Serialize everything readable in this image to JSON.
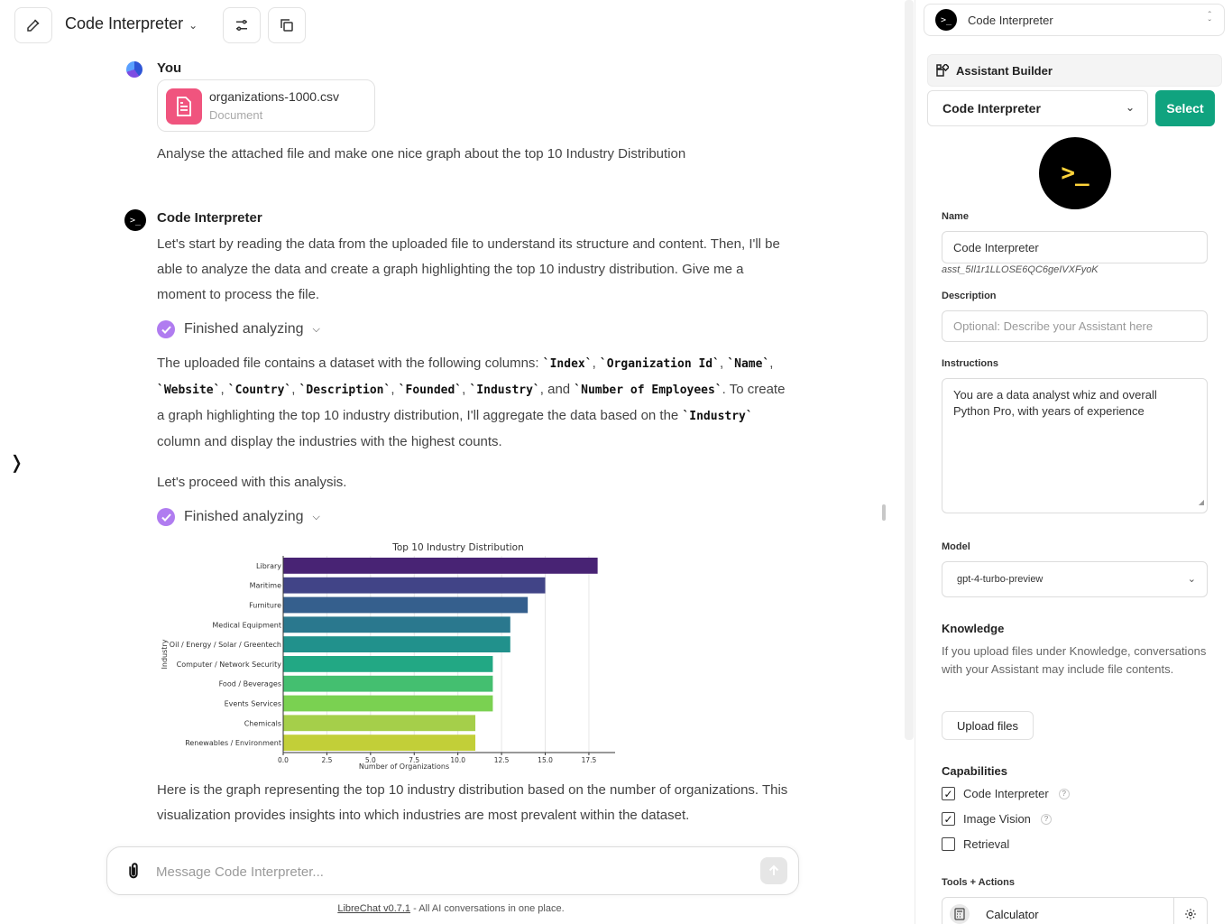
{
  "header": {
    "title": "Code Interpreter"
  },
  "chat": {
    "user": {
      "name": "You",
      "file": {
        "name": "organizations-1000.csv",
        "type": "Document"
      },
      "message": "Analyse the attached file and make one nice graph about the top 10 Industry Distribution"
    },
    "assistant": {
      "name": "Code Interpreter",
      "avatar_text": ">_",
      "intro": "Let's start by reading the data from the uploaded file to understand its structure and content. Then, I'll be able to analyze the data and create a graph highlighting the top 10 industry distribution. Give me a moment to process the file.",
      "status1": "Finished analyzing",
      "columns_prefix": "The uploaded file contains a dataset with the following columns: ",
      "columns": [
        "`Index`",
        "`Organization Id`",
        "`Name`",
        "`Website`",
        "`Country`",
        "`Description`",
        "`Founded`",
        "`Industry`"
      ],
      "columns_and": ", and ",
      "columns_last": "`Number of Employees`",
      "aggregate_prefix": ". To create a graph highlighting the top 10 industry distribution, I'll aggregate the data based on the ",
      "aggregate_code": "`Industry`",
      "aggregate_suffix": " column and display the industries with the highest counts.",
      "proceed": "Let's proceed with this analysis.",
      "status2": "Finished analyzing",
      "summary": "Here is the graph representing the top 10 industry distribution based on the number of organizations. This visualization provides insights into which industries are most prevalent within the dataset."
    }
  },
  "chart_data": {
    "type": "bar",
    "orientation": "horizontal",
    "title": "Top 10 Industry Distribution",
    "xlabel": "Number of Organizations",
    "ylabel": "Industry",
    "categories": [
      "Library",
      "Maritime",
      "Furniture",
      "Medical Equipment",
      "Oil / Energy / Solar / Greentech",
      "Computer / Network Security",
      "Food / Beverages",
      "Events Services",
      "Chemicals",
      "Renewables / Environment"
    ],
    "values": [
      18,
      15,
      14,
      13,
      13,
      12,
      12,
      12,
      11,
      11
    ],
    "xlim": [
      0,
      19
    ],
    "xticks": [
      "0.0",
      "2.5",
      "5.0",
      "7.5",
      "10.0",
      "12.5",
      "15.0",
      "17.5"
    ],
    "grid": true,
    "colors": [
      "#482374",
      "#414487",
      "#355f8d",
      "#2a788e",
      "#21918c",
      "#22a884",
      "#44bf70",
      "#7ad151",
      "#a5cf4a",
      "#c2cf38"
    ]
  },
  "composer": {
    "placeholder": "Message Code Interpreter..."
  },
  "footer": {
    "link": "LibreChat v0.7.1",
    "text": " - All AI conversations in one place."
  },
  "panel": {
    "assistant_select": "Code Interpreter",
    "builder_title": "Assistant Builder",
    "assistant_dropdown": "Code Interpreter",
    "select_button": "Select",
    "avatar_text": ">_",
    "name_label": "Name",
    "name_value": "Code Interpreter",
    "assistant_id": "asst_5Il1r1LLOSE6QC6geIVXFyoK",
    "description_label": "Description",
    "description_placeholder": "Optional: Describe your Assistant here",
    "instructions_label": "Instructions",
    "instructions_value": "You are a data analyst whiz and overall Python Pro, with years of experience",
    "model_label": "Model",
    "model_value": "gpt-4-turbo-preview",
    "knowledge_title": "Knowledge",
    "knowledge_text": "If you upload files under Knowledge, conversations with your Assistant may include file contents.",
    "upload_button": "Upload files",
    "capabilities_title": "Capabilities",
    "capabilities": [
      {
        "label": "Code Interpreter",
        "checked": true,
        "help": "?"
      },
      {
        "label": "Image Vision",
        "checked": true,
        "help": "?"
      },
      {
        "label": "Retrieval",
        "checked": false
      }
    ],
    "tools_title": "Tools + Actions",
    "tool": {
      "label": "Calculator",
      "icon": "calculator-icon"
    }
  },
  "colors": {
    "accent": "#10a37f",
    "file_icon": "#f0547e",
    "status_check": "#b07cf0"
  }
}
